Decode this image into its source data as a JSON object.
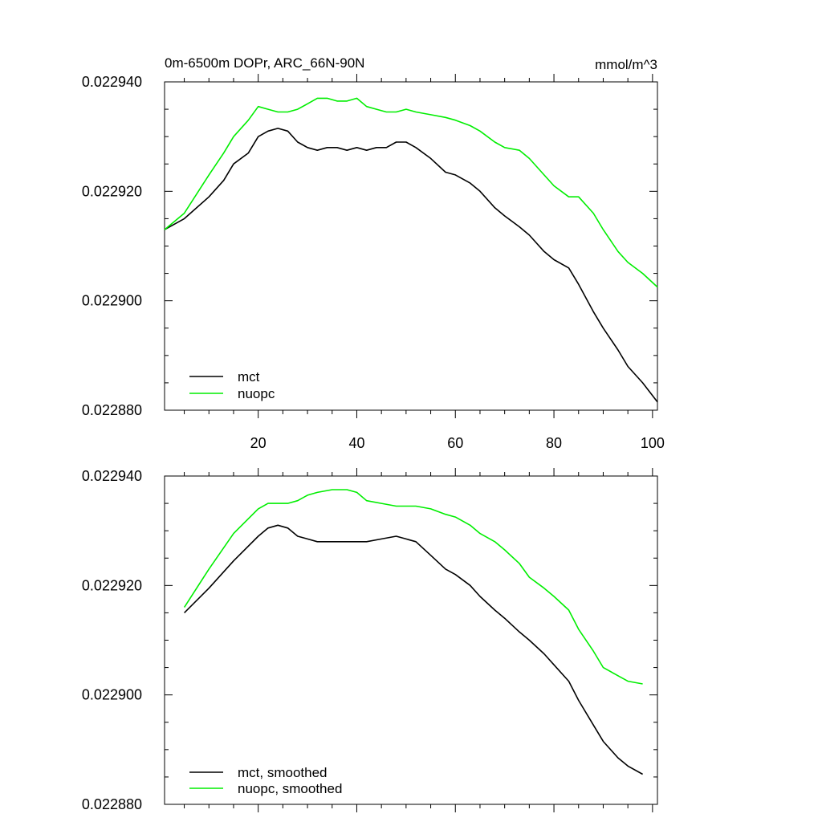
{
  "chart_data": [
    {
      "type": "line",
      "title": "0m-6500m DOPr, ARC_66N-90N",
      "units": "mmol/m^3",
      "xlim": [
        1,
        101
      ],
      "ylim": [
        0.02288,
        0.02294
      ],
      "xticks": [
        20,
        40,
        60,
        80,
        100
      ],
      "xtick_labels": [
        "20",
        "40",
        "60",
        "80",
        "100"
      ],
      "xtick_labels_shown": true,
      "yticks": [
        0.02288,
        0.0229,
        0.02292,
        0.02294
      ],
      "ytick_labels": [
        "0.022880",
        "0.022900",
        "0.022920",
        "0.022940"
      ],
      "legend_position": "bottom-left",
      "series": [
        {
          "name": "mct",
          "color": "#000000",
          "x": [
            1,
            5,
            10,
            13,
            15,
            18,
            20,
            22,
            24,
            26,
            28,
            30,
            32,
            34,
            36,
            38,
            40,
            42,
            44,
            46,
            48,
            50,
            52,
            55,
            58,
            60,
            63,
            65,
            68,
            70,
            73,
            75,
            78,
            80,
            83,
            85,
            88,
            90,
            93,
            95,
            98,
            101
          ],
          "values": [
            0.022913,
            0.022915,
            0.022919,
            0.022922,
            0.022925,
            0.022927,
            0.02293,
            0.022931,
            0.0229315,
            0.022931,
            0.022929,
            0.022928,
            0.0229275,
            0.022928,
            0.022928,
            0.0229275,
            0.022928,
            0.0229275,
            0.022928,
            0.022928,
            0.022929,
            0.022929,
            0.022928,
            0.022926,
            0.0229235,
            0.022923,
            0.0229215,
            0.02292,
            0.022917,
            0.0229155,
            0.0229135,
            0.022912,
            0.022909,
            0.0229075,
            0.022906,
            0.022903,
            0.022898,
            0.022895,
            0.022891,
            0.022888,
            0.022885,
            0.0228815
          ]
        },
        {
          "name": "nuopc",
          "color": "#00ee00",
          "x": [
            1,
            5,
            10,
            13,
            15,
            18,
            20,
            22,
            24,
            26,
            28,
            30,
            32,
            34,
            36,
            38,
            40,
            42,
            44,
            46,
            48,
            50,
            52,
            55,
            58,
            60,
            63,
            65,
            68,
            70,
            73,
            75,
            78,
            80,
            83,
            85,
            88,
            90,
            93,
            95,
            98,
            101
          ],
          "values": [
            0.022913,
            0.022916,
            0.022923,
            0.022927,
            0.02293,
            0.022933,
            0.0229355,
            0.022935,
            0.0229345,
            0.0229345,
            0.022935,
            0.022936,
            0.022937,
            0.022937,
            0.0229365,
            0.0229365,
            0.022937,
            0.0229355,
            0.022935,
            0.0229345,
            0.0229345,
            0.022935,
            0.0229345,
            0.022934,
            0.0229335,
            0.022933,
            0.022932,
            0.022931,
            0.022929,
            0.022928,
            0.0229275,
            0.022926,
            0.022923,
            0.022921,
            0.022919,
            0.022919,
            0.022916,
            0.022913,
            0.022909,
            0.022907,
            0.022905,
            0.0229025
          ]
        }
      ]
    },
    {
      "type": "line",
      "xlim": [
        1,
        101
      ],
      "ylim": [
        0.02288,
        0.02294
      ],
      "xticks": [
        20,
        40,
        60,
        80,
        100
      ],
      "xtick_labels_shown": false,
      "yticks": [
        0.02288,
        0.0229,
        0.02292,
        0.02294
      ],
      "ytick_labels": [
        "0.022880",
        "0.022900",
        "0.022920",
        "0.022940"
      ],
      "legend_position": "bottom-left",
      "series": [
        {
          "name": "mct, smoothed",
          "color": "#000000",
          "x": [
            5,
            10,
            15,
            20,
            22,
            24,
            26,
            28,
            30,
            32,
            35,
            38,
            40,
            42,
            45,
            48,
            50,
            52,
            55,
            58,
            60,
            63,
            65,
            68,
            70,
            73,
            75,
            78,
            80,
            83,
            85,
            88,
            90,
            93,
            95,
            98
          ],
          "values": [
            0.022915,
            0.0229195,
            0.0229245,
            0.022929,
            0.0229305,
            0.022931,
            0.0229305,
            0.022929,
            0.0229285,
            0.022928,
            0.022928,
            0.022928,
            0.022928,
            0.022928,
            0.0229285,
            0.022929,
            0.0229285,
            0.022928,
            0.0229255,
            0.022923,
            0.022922,
            0.02292,
            0.022918,
            0.0229155,
            0.022914,
            0.0229115,
            0.02291,
            0.0229075,
            0.0229055,
            0.0229025,
            0.022899,
            0.0228945,
            0.0228915,
            0.0228885,
            0.022887,
            0.0228855
          ]
        },
        {
          "name": "nuopc, smoothed",
          "color": "#00ee00",
          "x": [
            5,
            10,
            15,
            20,
            22,
            24,
            26,
            28,
            30,
            32,
            35,
            38,
            40,
            42,
            45,
            48,
            50,
            52,
            55,
            58,
            60,
            63,
            65,
            68,
            70,
            73,
            75,
            78,
            80,
            83,
            85,
            88,
            90,
            93,
            95,
            98
          ],
          "values": [
            0.022916,
            0.022923,
            0.0229295,
            0.022934,
            0.022935,
            0.022935,
            0.022935,
            0.0229355,
            0.0229365,
            0.022937,
            0.0229375,
            0.0229375,
            0.022937,
            0.0229355,
            0.022935,
            0.0229345,
            0.0229345,
            0.0229345,
            0.022934,
            0.022933,
            0.0229325,
            0.022931,
            0.0229295,
            0.022928,
            0.0229265,
            0.022924,
            0.0229215,
            0.0229195,
            0.022918,
            0.0229155,
            0.022912,
            0.022908,
            0.022905,
            0.0229035,
            0.0229025,
            0.022902
          ]
        }
      ]
    }
  ]
}
